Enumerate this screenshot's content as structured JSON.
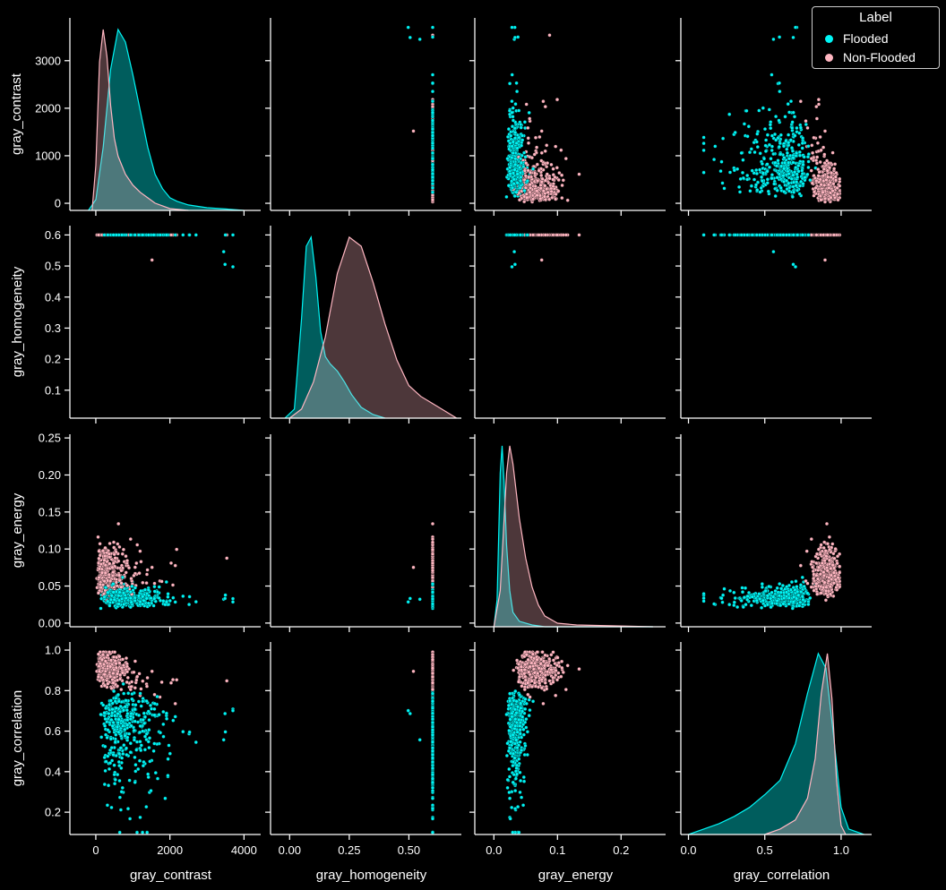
{
  "chart_data": {
    "type": "scatter",
    "kind": "pairplot",
    "variables": [
      "gray_contrast",
      "gray_homogeneity",
      "gray_energy",
      "gray_correlation"
    ],
    "diagonal": "kde",
    "hue": "Label",
    "legend": {
      "title": "Label",
      "placement": "top-right",
      "entries": [
        {
          "name": "Flooded",
          "color": "#00f5f5"
        },
        {
          "name": "Non-Flooded",
          "color": "#ffb6c1"
        }
      ]
    },
    "axes": {
      "gray_contrast": {
        "range": [
          -700,
          4450
        ],
        "ticks": [
          0,
          1000,
          2000,
          3000
        ],
        "tick_labels": [
          "0",
          "1000",
          "2000",
          "3000"
        ],
        "x_ticks": [
          0,
          2000,
          4000
        ],
        "x_tick_labels": [
          "0",
          "2000",
          "4000"
        ],
        "y_range": [
          -150,
          3900
        ]
      },
      "gray_homogeneity": {
        "range": [
          -0.08,
          0.72
        ],
        "ticks": [
          0.1,
          0.2,
          0.3,
          0.4,
          0.5,
          0.6
        ],
        "tick_labels": [
          "0.1",
          "0.2",
          "0.3",
          "0.4",
          "0.5",
          "0.6"
        ],
        "x_ticks": [
          0.0,
          0.25,
          0.5
        ],
        "x_tick_labels": [
          "0.00",
          "0.25",
          "0.50"
        ],
        "y_range": [
          0.01,
          0.63
        ]
      },
      "gray_energy": {
        "range": [
          -0.03,
          0.27
        ],
        "ticks": [
          0.0,
          0.05,
          0.1,
          0.15,
          0.2,
          0.25
        ],
        "tick_labels": [
          "0.00",
          "0.05",
          "0.10",
          "0.15",
          "0.20",
          "0.25"
        ],
        "x_ticks": [
          0.0,
          0.1,
          0.2
        ],
        "x_tick_labels": [
          "0.0",
          "0.1",
          "0.2"
        ],
        "y_range": [
          -0.005,
          0.255
        ]
      },
      "gray_correlation": {
        "range": [
          -0.05,
          1.2
        ],
        "ticks": [
          0.2,
          0.4,
          0.6,
          0.8,
          1.0
        ],
        "tick_labels": [
          "0.2",
          "0.4",
          "0.6",
          "0.8",
          "1.0"
        ],
        "x_ticks": [
          0.0,
          0.5,
          1.0
        ],
        "x_tick_labels": [
          "0.0",
          "0.5",
          "1.0"
        ],
        "y_range": [
          0.09,
          1.04
        ]
      }
    },
    "groups": {
      "Flooded": {
        "color": "#00f5f5",
        "n": 420,
        "gray_contrast": {
          "dist": "lognormal",
          "median": 750,
          "sigma": 0.55
        },
        "gray_homogeneity": {
          "dist": "power",
          "a": 55,
          "b": -0.55,
          "noise": 0.18
        },
        "gray_energy": {
          "dist": "linear",
          "a": 0.0035,
          "b": 0.07,
          "noise": 0.2
        },
        "gray_correlation": {
          "dist": "skewleft",
          "mode": 0.85,
          "min": 0.1,
          "max": 0.97
        },
        "kde": {
          "gray_contrast": [
            [
              -200,
              0.0
            ],
            [
              0,
              0.06
            ],
            [
              200,
              0.35
            ],
            [
              400,
              0.78
            ],
            [
              600,
              1.0
            ],
            [
              800,
              0.93
            ],
            [
              1000,
              0.75
            ],
            [
              1200,
              0.55
            ],
            [
              1400,
              0.35
            ],
            [
              1600,
              0.2
            ],
            [
              1800,
              0.12
            ],
            [
              2000,
              0.07
            ],
            [
              2200,
              0.05
            ],
            [
              2500,
              0.03
            ],
            [
              3000,
              0.015
            ],
            [
              3500,
              0.008
            ],
            [
              4000,
              0.0
            ]
          ],
          "gray_homogeneity": [
            [
              -0.02,
              0.0
            ],
            [
              0.02,
              0.05
            ],
            [
              0.05,
              0.55
            ],
            [
              0.07,
              0.95
            ],
            [
              0.09,
              1.0
            ],
            [
              0.11,
              0.78
            ],
            [
              0.13,
              0.48
            ],
            [
              0.15,
              0.34
            ],
            [
              0.17,
              0.3
            ],
            [
              0.2,
              0.26
            ],
            [
              0.23,
              0.2
            ],
            [
              0.26,
              0.13
            ],
            [
              0.3,
              0.06
            ],
            [
              0.35,
              0.02
            ],
            [
              0.4,
              0.0
            ]
          ],
          "gray_energy": [
            [
              0.0,
              0.0
            ],
            [
              0.005,
              0.15
            ],
            [
              0.01,
              0.85
            ],
            [
              0.013,
              1.0
            ],
            [
              0.016,
              0.8
            ],
            [
              0.02,
              0.45
            ],
            [
              0.025,
              0.2
            ],
            [
              0.03,
              0.08
            ],
            [
              0.04,
              0.03
            ],
            [
              0.06,
              0.01
            ],
            [
              0.08,
              0.0
            ],
            [
              0.25,
              0.0
            ]
          ],
          "gray_correlation": [
            [
              0.0,
              0.0
            ],
            [
              0.1,
              0.03
            ],
            [
              0.2,
              0.06
            ],
            [
              0.3,
              0.1
            ],
            [
              0.4,
              0.15
            ],
            [
              0.5,
              0.22
            ],
            [
              0.6,
              0.3
            ],
            [
              0.7,
              0.5
            ],
            [
              0.78,
              0.78
            ],
            [
              0.85,
              1.0
            ],
            [
              0.9,
              0.92
            ],
            [
              0.95,
              0.55
            ],
            [
              1.0,
              0.15
            ],
            [
              1.05,
              0.03
            ],
            [
              1.15,
              0.0
            ]
          ]
        }
      },
      "Non-Flooded": {
        "color": "#ffb6c1",
        "n": 380,
        "gray_contrast": {
          "dist": "lognormal",
          "median": 320,
          "sigma": 0.75
        },
        "gray_homogeneity": {
          "dist": "power",
          "a": 55,
          "b": -0.55,
          "noise": 0.22
        },
        "gray_energy": {
          "dist": "linear",
          "a": 0.0035,
          "b": 0.14,
          "noise": 0.25
        },
        "gray_correlation": {
          "dist": "peak",
          "mode": 0.91,
          "min": 0.55,
          "max": 0.99
        },
        "kde": {
          "gray_contrast": [
            [
              -100,
              0.0
            ],
            [
              0,
              0.25
            ],
            [
              100,
              0.82
            ],
            [
              200,
              1.0
            ],
            [
              300,
              0.85
            ],
            [
              400,
              0.58
            ],
            [
              500,
              0.4
            ],
            [
              600,
              0.3
            ],
            [
              800,
              0.2
            ],
            [
              1000,
              0.14
            ],
            [
              1200,
              0.1
            ],
            [
              1400,
              0.07
            ],
            [
              1600,
              0.04
            ],
            [
              2000,
              0.01
            ],
            [
              2500,
              0.0
            ]
          ],
          "gray_homogeneity": [
            [
              0.0,
              0.0
            ],
            [
              0.05,
              0.05
            ],
            [
              0.1,
              0.2
            ],
            [
              0.15,
              0.45
            ],
            [
              0.2,
              0.8
            ],
            [
              0.25,
              1.0
            ],
            [
              0.3,
              0.95
            ],
            [
              0.35,
              0.75
            ],
            [
              0.4,
              0.52
            ],
            [
              0.45,
              0.32
            ],
            [
              0.5,
              0.18
            ],
            [
              0.55,
              0.12
            ],
            [
              0.6,
              0.08
            ],
            [
              0.65,
              0.04
            ],
            [
              0.7,
              0.0
            ]
          ],
          "gray_energy": [
            [
              0.0,
              0.0
            ],
            [
              0.01,
              0.2
            ],
            [
              0.02,
              0.85
            ],
            [
              0.025,
              1.0
            ],
            [
              0.03,
              0.9
            ],
            [
              0.04,
              0.6
            ],
            [
              0.05,
              0.38
            ],
            [
              0.06,
              0.22
            ],
            [
              0.07,
              0.12
            ],
            [
              0.08,
              0.06
            ],
            [
              0.1,
              0.02
            ],
            [
              0.13,
              0.01
            ],
            [
              0.25,
              0.0
            ]
          ],
          "gray_correlation": [
            [
              0.5,
              0.0
            ],
            [
              0.6,
              0.03
            ],
            [
              0.7,
              0.08
            ],
            [
              0.78,
              0.2
            ],
            [
              0.83,
              0.42
            ],
            [
              0.87,
              0.78
            ],
            [
              0.91,
              1.0
            ],
            [
              0.94,
              0.75
            ],
            [
              0.97,
              0.3
            ],
            [
              1.0,
              0.05
            ],
            [
              1.03,
              0.0
            ]
          ]
        }
      }
    }
  }
}
